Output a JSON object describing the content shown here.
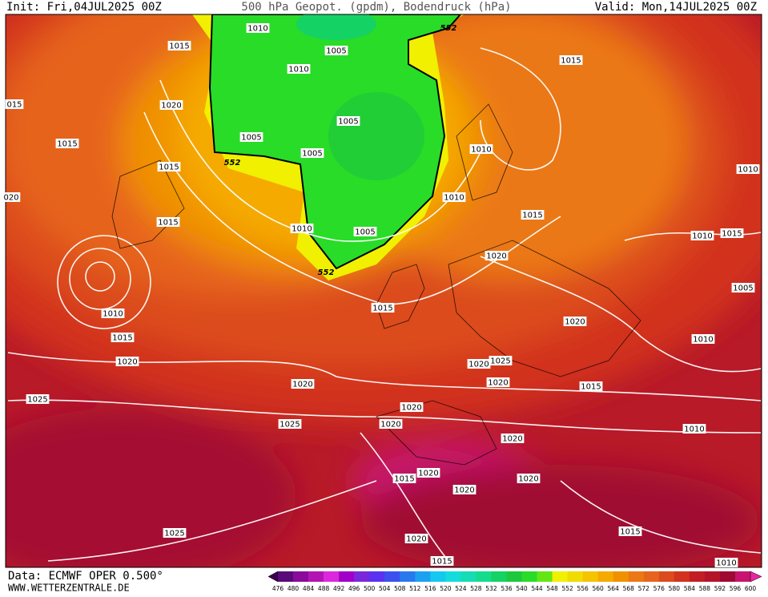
{
  "header": {
    "init": "Init: Fri,04JUL2025 00Z",
    "title": "500 hPa Geopot. (gpdm), Bodendruck (hPa)",
    "valid": "Valid: Mon,14JUL2025 00Z"
  },
  "footer": {
    "data": "Data: ECMWF OPER 0.500°",
    "site": "WWW.WETTERZENTRALE.DE"
  },
  "isobar_labels": [
    "1010",
    "1015",
    "1005",
    "1010",
    "1015",
    "1020",
    "015",
    "1005",
    "1005",
    "1005",
    "1010",
    "1015",
    "1015",
    "1010",
    "020",
    "1010",
    "1015",
    "1015",
    "1010",
    "1005",
    "1010",
    "1015",
    "1020",
    "1005",
    "1015",
    "1010",
    "1020",
    "1015",
    "1010",
    "1020",
    "1020",
    "1025",
    "1020",
    "1020",
    "1015",
    "1025",
    "1020",
    "1020",
    "1025",
    "1010",
    "1020",
    "1020",
    "1015",
    "1020",
    "1020",
    "1025",
    "1015",
    "1020",
    "1015",
    "1010"
  ],
  "geopot_labels": [
    "552",
    "552",
    "552"
  ],
  "colorbar": {
    "labels": [
      476,
      480,
      484,
      488,
      492,
      496,
      500,
      504,
      508,
      512,
      516,
      520,
      524,
      528,
      532,
      536,
      540,
      544,
      548,
      552,
      556,
      560,
      564,
      568,
      572,
      576,
      580,
      584,
      588,
      592,
      596,
      600
    ],
    "colors": [
      "#3c0050",
      "#5a0a78",
      "#8a0a9a",
      "#b414b4",
      "#dc28dc",
      "#a000c8",
      "#7a28dc",
      "#5a32f0",
      "#3c50f0",
      "#2878f0",
      "#1ea0f0",
      "#14c8f0",
      "#14dcdc",
      "#14dcb4",
      "#14dc8c",
      "#14d264",
      "#1ec83c",
      "#28dc28",
      "#64e614",
      "#f0f000",
      "#f0dc00",
      "#f5c300",
      "#f5aa00",
      "#f09100",
      "#eb7814",
      "#e6641e",
      "#dc4b1e",
      "#d2321e",
      "#c31e23",
      "#b41428",
      "#a00a32",
      "#c8146e",
      "#e628a0"
    ]
  }
}
